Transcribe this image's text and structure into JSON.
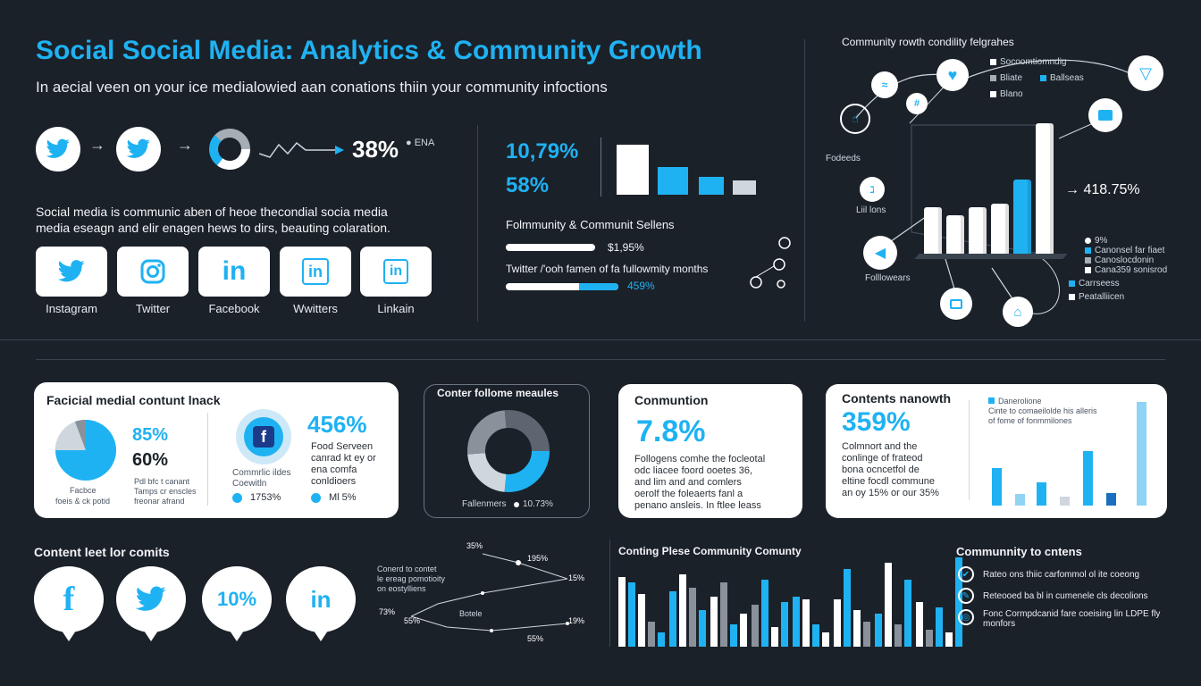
{
  "header": {
    "title": "Social Social Media: Analytics & Community Growth",
    "subtitle": "In aecial veen on your ice medialowied aan conations thiin your community infoctions"
  },
  "flow": {
    "percent": "38%",
    "tag": "● ENA"
  },
  "intro": {
    "line1": "Social media is communic aben of heoe thecondial socia media",
    "line2": "media eseagn and elir enagen hews to dirs, beauting colaration."
  },
  "platforms": [
    {
      "label": "Instagram",
      "icon": "twitter-icon"
    },
    {
      "label": "Twitter",
      "icon": "instagram-icon"
    },
    {
      "label": "Facebook",
      "icon": "linkedin-icon"
    },
    {
      "label": "Wwitters",
      "icon": "linkedin-icon"
    },
    {
      "label": "Linkain",
      "icon": "linkedin-icon"
    }
  ],
  "stats_panel": {
    "pct1": "10,79%",
    "pct2": "58%",
    "heading": "Folmmunity & Communit Sellens",
    "row1_value": "$1,95%",
    "row2_label": "Twitter /'ooh famen of fa fullowmity months",
    "row2_value": "459%",
    "bars": [
      100,
      55,
      35,
      28
    ]
  },
  "community_chart": {
    "title": "Community rowth condility felgrahes",
    "legend": [
      "Socoomtiomndig",
      "Bliate",
      "Ballseas",
      "Blano"
    ],
    "label_left": "Fodeeds",
    "label_mid": "Liil lons",
    "label_bottom": "Folllowears",
    "value": "418.75%",
    "side_legend": [
      "9%",
      "Canonsel far fiaet",
      "Canoslocdonin",
      "Cana359 sonisrod"
    ],
    "bottom_legend": [
      "Carrseess",
      "Peatalliicen"
    ],
    "bars": [
      60,
      50,
      60,
      65,
      95,
      165
    ]
  },
  "card1": {
    "title": "Facicial medial contunt lnack",
    "pct1": "85%",
    "pct2": "60%",
    "pie_caption1": "Facbce",
    "pie_caption2": "foeis & ck potid",
    "small1": "Pdl bfc t canant",
    "small2": "Tamps cr enscles",
    "small3": "freonar afrand",
    "fb_caption1": "Commrlic ildes",
    "fb_caption2": "Coewitln",
    "big": "456%",
    "desc1": "Food Serveen",
    "desc2": "canrad kt ey or",
    "desc3": "ena comfa",
    "desc4": "conldioers",
    "foot1": "1753%",
    "foot2": "Ml 5%"
  },
  "donut_card": {
    "title": "Conter follome meaules",
    "caption": "Fallenmers",
    "value": "10.73%"
  },
  "card3": {
    "title": "Conmuntion",
    "value": "7.8%",
    "desc": [
      "Follogens comhe the focleotal",
      "odc liacee foord ooetes 36,",
      "and lim and and comlers",
      "oerolf the foleaerts fanl a",
      "penano ansleis. In ftlee leass"
    ]
  },
  "card4": {
    "title": "Contents nanowth",
    "value": "359%",
    "desc": [
      "Colmnort and the",
      "conlinge of frateod",
      "bona ocncetfol de",
      "eltine focdl commune",
      "an oy 15% or our 35%"
    ],
    "legend1": "Danerolione",
    "legend2": "Cinte to comaeilolde his alleris",
    "legend3": "of fome of fonmmilones",
    "bars": [
      65,
      20,
      40,
      15,
      95,
      22,
      180
    ]
  },
  "bottom_left": {
    "title": "Content leet lor comits",
    "pins": [
      "facebook-icon",
      "twitter-icon",
      "10%",
      "linkedin-icon"
    ]
  },
  "line_chart": {
    "labels": {
      "a": "35%",
      "b": "195%",
      "c": "15%",
      "d": "73%",
      "e": "55%",
      "f": "19%",
      "g": "55%"
    },
    "text1": "Conerd to contet",
    "text2": "le ereag pomotioity",
    "text3": "on eostylliens",
    "text4": "Botele"
  },
  "bar_chart": {
    "title": "Conting Plese Community Comunty",
    "groups": [
      [
        125,
        115,
        95,
        45,
        25
      ],
      [
        100,
        130,
        105,
        65
      ],
      [
        90,
        115,
        40,
        60
      ],
      [
        75,
        120,
        35,
        80
      ],
      [
        90,
        85,
        40,
        25
      ],
      [
        85,
        140,
        65,
        45
      ],
      [
        60,
        150,
        40,
        120
      ],
      [
        80,
        30,
        70,
        25,
        160
      ]
    ]
  },
  "checklist": {
    "title": "Communnity to cntens",
    "items": [
      "Rateo ons thiic carfommol ol ite coeong",
      "Reteooed ba bl in cumenele cls decolions",
      "Fonc Cormpdcanid fare coeising lin LDPE fly monfors"
    ]
  },
  "colors": {
    "accent": "#1fb2f2",
    "background": "#1b2129",
    "white": "#ffffff",
    "grey": "#a7adb5"
  }
}
